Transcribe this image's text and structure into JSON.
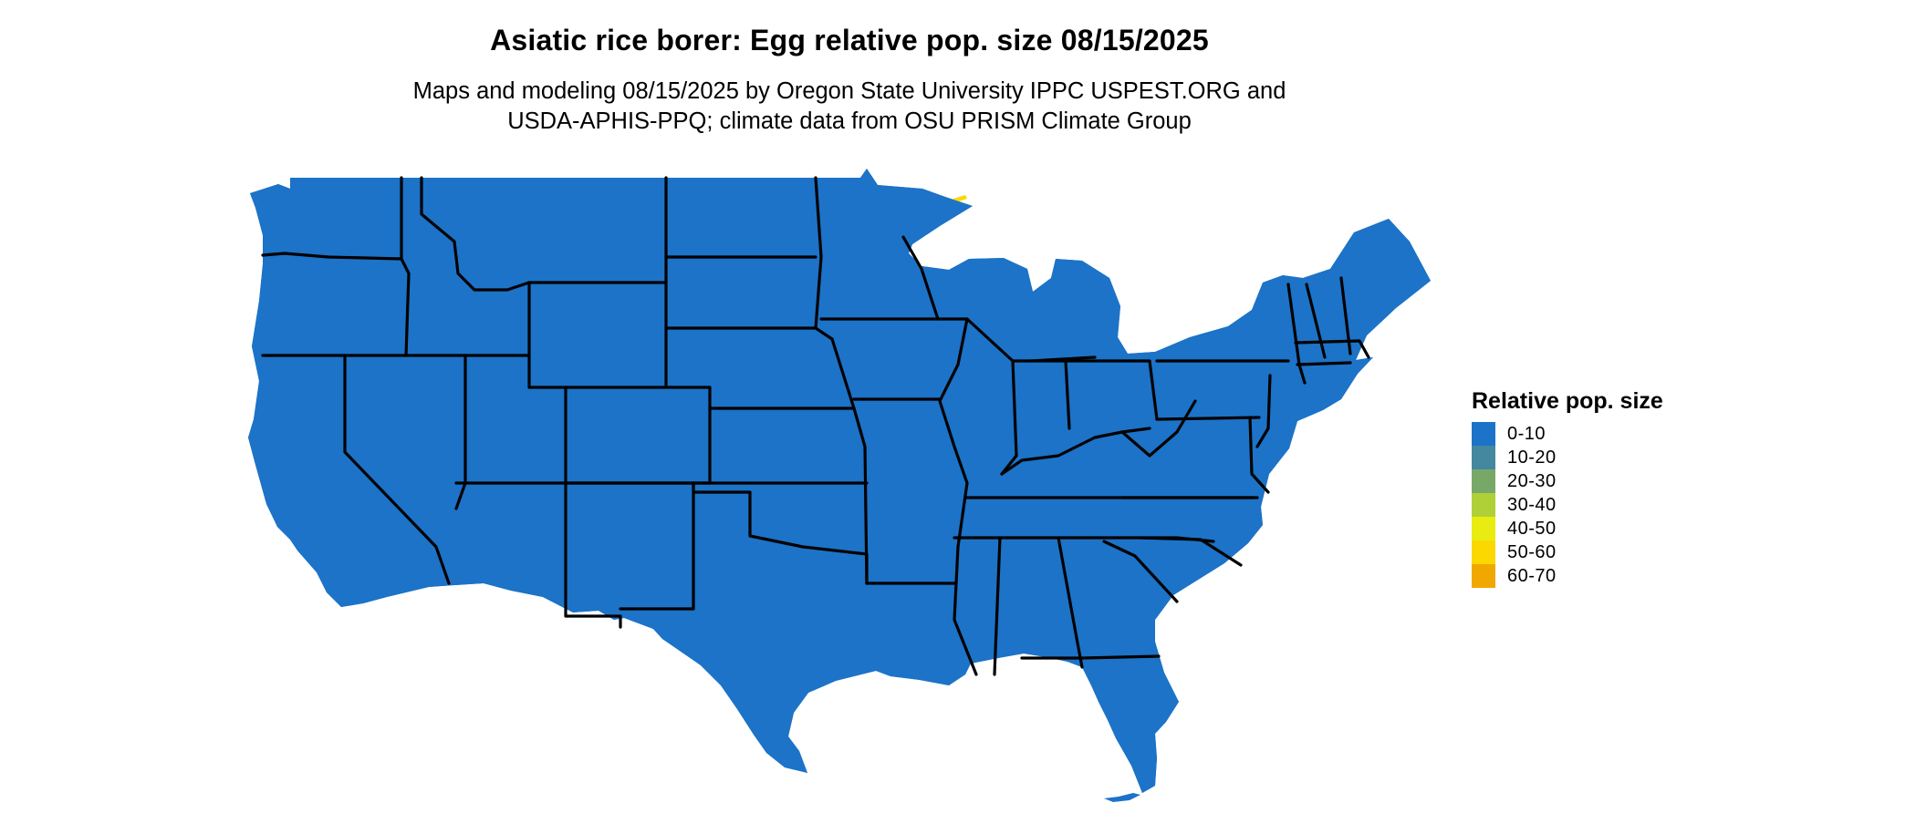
{
  "title": "Asiatic rice borer: Egg relative pop. size 08/15/2025",
  "subtitle_lines": [
    "Maps and modeling 08/15/2025 by Oregon State University IPPC USPEST.ORG and",
    "USDA-APHIS-PPQ; climate data from OSU PRISM Climate Group"
  ],
  "map": {
    "region": "Contiguous United States",
    "base_class": "0-10",
    "state_border_color": "#000000"
  },
  "legend": {
    "title": "Relative pop. size",
    "items": [
      {
        "label": "0-10",
        "color": "#1c73c8"
      },
      {
        "label": "10-20",
        "color": "#4488a0"
      },
      {
        "label": "20-30",
        "color": "#78a868"
      },
      {
        "label": "30-40",
        "color": "#b0d038"
      },
      {
        "label": "40-50",
        "color": "#e8ec10"
      },
      {
        "label": "50-60",
        "color": "#fad800"
      },
      {
        "label": "60-70",
        "color": "#f0a800"
      }
    ]
  }
}
